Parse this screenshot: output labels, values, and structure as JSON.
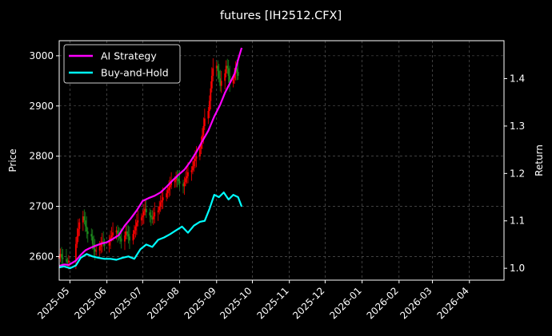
{
  "chart_data": {
    "type": "line",
    "title": "futures [IH2512.CFX]",
    "ylabel_left": "Price",
    "ylabel_right": "Return",
    "x_ticks": [
      "2025-05",
      "2025-06",
      "2025-07",
      "2025-08",
      "2025-09",
      "2025-10",
      "2025-11",
      "2025-12",
      "2026-01",
      "2026-02",
      "2026-03",
      "2026-04"
    ],
    "xlim": [
      "2025-04-22",
      "2026-04-30"
    ],
    "y_left_ticks": [
      2600,
      2700,
      2800,
      2900,
      3000
    ],
    "y_left_lim": [
      2553,
      3030
    ],
    "y_right_ticks": [
      1.0,
      1.1,
      1.2,
      1.3,
      1.4
    ],
    "y_right_lim": [
      0.975,
      1.48
    ],
    "grid": true,
    "legend_position": "top-left",
    "background": "#000000",
    "up_color": "#ff0000",
    "down_color": "#1e8c1e",
    "series": [
      {
        "name": "AI Strategy",
        "color": "#ff00ff",
        "axis": "right",
        "x": [
          "2025-04-22",
          "2025-04-26",
          "2025-04-30",
          "2025-05-06",
          "2025-05-10",
          "2025-05-14",
          "2025-05-18",
          "2025-05-22",
          "2025-05-27",
          "2025-06-01",
          "2025-06-06",
          "2025-06-11",
          "2025-06-16",
          "2025-06-21",
          "2025-06-26",
          "2025-07-01",
          "2025-07-06",
          "2025-07-11",
          "2025-07-16",
          "2025-07-21",
          "2025-07-26",
          "2025-07-31",
          "2025-08-05",
          "2025-08-10",
          "2025-08-15",
          "2025-08-20",
          "2025-08-25",
          "2025-08-30",
          "2025-09-04",
          "2025-09-08",
          "2025-09-12",
          "2025-09-16",
          "2025-09-19",
          "2025-09-22"
        ],
        "values": [
          1.005,
          1.008,
          1.007,
          1.016,
          1.028,
          1.038,
          1.043,
          1.047,
          1.052,
          1.055,
          1.062,
          1.07,
          1.09,
          1.105,
          1.122,
          1.142,
          1.148,
          1.153,
          1.16,
          1.172,
          1.185,
          1.197,
          1.208,
          1.225,
          1.245,
          1.268,
          1.29,
          1.32,
          1.345,
          1.37,
          1.39,
          1.41,
          1.44,
          1.465
        ]
      },
      {
        "name": "Buy-and-Hold",
        "color": "#00ffff",
        "axis": "right",
        "x": [
          "2025-04-22",
          "2025-04-26",
          "2025-05-01",
          "2025-05-06",
          "2025-05-10",
          "2025-05-15",
          "2025-05-20",
          "2025-05-25",
          "2025-05-30",
          "2025-06-04",
          "2025-06-09",
          "2025-06-14",
          "2025-06-19",
          "2025-06-24",
          "2025-06-29",
          "2025-07-04",
          "2025-07-09",
          "2025-07-14",
          "2025-07-19",
          "2025-07-24",
          "2025-07-29",
          "2025-08-03",
          "2025-08-08",
          "2025-08-13",
          "2025-08-18",
          "2025-08-22",
          "2025-08-26",
          "2025-08-30",
          "2025-09-03",
          "2025-09-07",
          "2025-09-11",
          "2025-09-15",
          "2025-09-19",
          "2025-09-22"
        ],
        "values": [
          1.002,
          1.004,
          1.0,
          1.006,
          1.022,
          1.03,
          1.025,
          1.022,
          1.02,
          1.02,
          1.018,
          1.022,
          1.025,
          1.02,
          1.04,
          1.05,
          1.045,
          1.06,
          1.065,
          1.072,
          1.08,
          1.088,
          1.075,
          1.09,
          1.098,
          1.1,
          1.125,
          1.155,
          1.15,
          1.16,
          1.145,
          1.155,
          1.15,
          1.13
        ]
      }
    ],
    "candles": {
      "x": [
        "2025-04-22",
        "2025-04-23",
        "2025-04-24",
        "2025-04-25",
        "2025-04-28",
        "2025-04-29",
        "2025-04-30",
        "2025-05-06",
        "2025-05-07",
        "2025-05-08",
        "2025-05-09",
        "2025-05-12",
        "2025-05-13",
        "2025-05-14",
        "2025-05-15",
        "2025-05-16",
        "2025-05-19",
        "2025-05-20",
        "2025-05-21",
        "2025-05-22",
        "2025-05-23",
        "2025-05-26",
        "2025-05-27",
        "2025-05-28",
        "2025-05-29",
        "2025-05-30",
        "2025-06-03",
        "2025-06-04",
        "2025-06-05",
        "2025-06-06",
        "2025-06-09",
        "2025-06-10",
        "2025-06-11",
        "2025-06-12",
        "2025-06-13",
        "2025-06-16",
        "2025-06-17",
        "2025-06-18",
        "2025-06-19",
        "2025-06-20",
        "2025-06-23",
        "2025-06-24",
        "2025-06-25",
        "2025-06-26",
        "2025-06-27",
        "2025-06-30",
        "2025-07-01",
        "2025-07-02",
        "2025-07-03",
        "2025-07-04",
        "2025-07-07",
        "2025-07-08",
        "2025-07-09",
        "2025-07-10",
        "2025-07-11",
        "2025-07-14",
        "2025-07-15",
        "2025-07-16",
        "2025-07-17",
        "2025-07-18",
        "2025-07-21",
        "2025-07-22",
        "2025-07-23",
        "2025-07-24",
        "2025-07-25",
        "2025-07-28",
        "2025-07-29",
        "2025-07-30",
        "2025-07-31",
        "2025-08-01",
        "2025-08-04",
        "2025-08-05",
        "2025-08-06",
        "2025-08-07",
        "2025-08-08",
        "2025-08-11",
        "2025-08-12",
        "2025-08-13",
        "2025-08-14",
        "2025-08-15",
        "2025-08-18",
        "2025-08-19",
        "2025-08-20",
        "2025-08-21",
        "2025-08-22",
        "2025-08-25",
        "2025-08-26",
        "2025-08-27",
        "2025-08-28",
        "2025-08-29",
        "2025-09-01",
        "2025-09-02",
        "2025-09-03",
        "2025-09-04",
        "2025-09-05",
        "2025-09-08",
        "2025-09-09",
        "2025-09-10",
        "2025-09-11",
        "2025-09-12",
        "2025-09-15",
        "2025-09-16",
        "2025-09-17",
        "2025-09-18",
        "2025-09-19"
      ],
      "close": [
        2600,
        2605,
        2598,
        2595,
        2590,
        2588,
        2592,
        2625,
        2640,
        2655,
        2668,
        2680,
        2672,
        2660,
        2650,
        2645,
        2640,
        2625,
        2615,
        2610,
        2612,
        2620,
        2625,
        2630,
        2628,
        2622,
        2632,
        2638,
        2642,
        2648,
        2652,
        2645,
        2640,
        2636,
        2630,
        2642,
        2650,
        2645,
        2640,
        2632,
        2645,
        2652,
        2660,
        2668,
        2672,
        2678,
        2682,
        2690,
        2695,
        2688,
        2682,
        2678,
        2674,
        2680,
        2688,
        2692,
        2700,
        2708,
        2712,
        2718,
        2726,
        2732,
        2738,
        2742,
        2748,
        2752,
        2758,
        2755,
        2750,
        2745,
        2740,
        2748,
        2756,
        2760,
        2768,
        2772,
        2780,
        2790,
        2795,
        2800,
        2815,
        2828,
        2842,
        2860,
        2875,
        2890,
        2910,
        2935,
        2960,
        2975,
        2980,
        2970,
        2955,
        2940,
        2950,
        2965,
        2980,
        2975,
        2960,
        2945,
        2955,
        2965,
        2975,
        2968,
        2960
      ]
    }
  },
  "legend": [
    {
      "label": "AI Strategy"
    },
    {
      "label": "Buy-and-Hold"
    }
  ]
}
